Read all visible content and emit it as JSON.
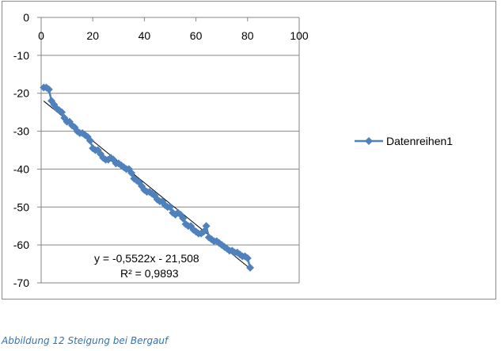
{
  "caption": "Abbildung 12 Steigung bei Bergauf",
  "chart_data": {
    "type": "scatter",
    "title": "",
    "xlabel": "",
    "ylabel": "",
    "xlim": [
      0,
      100
    ],
    "ylim": [
      -70,
      0
    ],
    "x_ticks": [
      "0",
      "20",
      "40",
      "60",
      "80",
      "100"
    ],
    "y_ticks": [
      "0",
      "-10",
      "-20",
      "-30",
      "-40",
      "-50",
      "-60",
      "-70"
    ],
    "grid": "horizontal",
    "legend_placement": "right",
    "series": [
      {
        "name": "Datenreihen1",
        "color": "#4f81bd",
        "marker": "diamond",
        "x": [
          1,
          2,
          3,
          4,
          5,
          6,
          7,
          8,
          9,
          10,
          11,
          12,
          13,
          14,
          15,
          16,
          17,
          18,
          19,
          20,
          21,
          22,
          23,
          24,
          25,
          26,
          27,
          28,
          29,
          30,
          31,
          32,
          33,
          34,
          35,
          36,
          37,
          38,
          39,
          40,
          41,
          42,
          43,
          44,
          45,
          46,
          47,
          48,
          49,
          50,
          51,
          52,
          53,
          54,
          55,
          56,
          57,
          58,
          59,
          60,
          61,
          62,
          63,
          64,
          65,
          66,
          67,
          68,
          69,
          70,
          71,
          72,
          73,
          74,
          75,
          76,
          77,
          78,
          79,
          80,
          81
        ],
        "y": [
          -18.5,
          -18.5,
          -19,
          -22,
          -23,
          -24,
          -24.5,
          -25,
          -26.5,
          -27.5,
          -27.5,
          -28.5,
          -29,
          -30,
          -30.5,
          -30.5,
          -31,
          -31.5,
          -32.5,
          -34.5,
          -35,
          -35,
          -36,
          -37,
          -37.5,
          -37.5,
          -37,
          -37.5,
          -38.5,
          -38.5,
          -39,
          -39.5,
          -40,
          -40,
          -41,
          -42.5,
          -43,
          -43.5,
          -44.5,
          -45.5,
          -46,
          -46,
          -46.5,
          -47,
          -48,
          -48.5,
          -48.5,
          -49.5,
          -50,
          -50,
          -51.5,
          -52,
          -51.5,
          -52,
          -53,
          -54.5,
          -55,
          -55,
          -56,
          -56.5,
          -57,
          -57,
          -56.5,
          -55,
          -58,
          -58.5,
          -59,
          -59,
          -59.5,
          -60,
          -60.5,
          -61,
          -61.5,
          -61.5,
          -62,
          -62,
          -62.5,
          -63,
          -63,
          -63.5,
          -66
        ]
      }
    ],
    "trendline": {
      "type": "linear",
      "slope": -0.5522,
      "intercept": -21.508,
      "color": "#000000"
    },
    "annotations": [
      "y = -0,5522x - 21,508",
      "R² = 0,9893"
    ]
  }
}
